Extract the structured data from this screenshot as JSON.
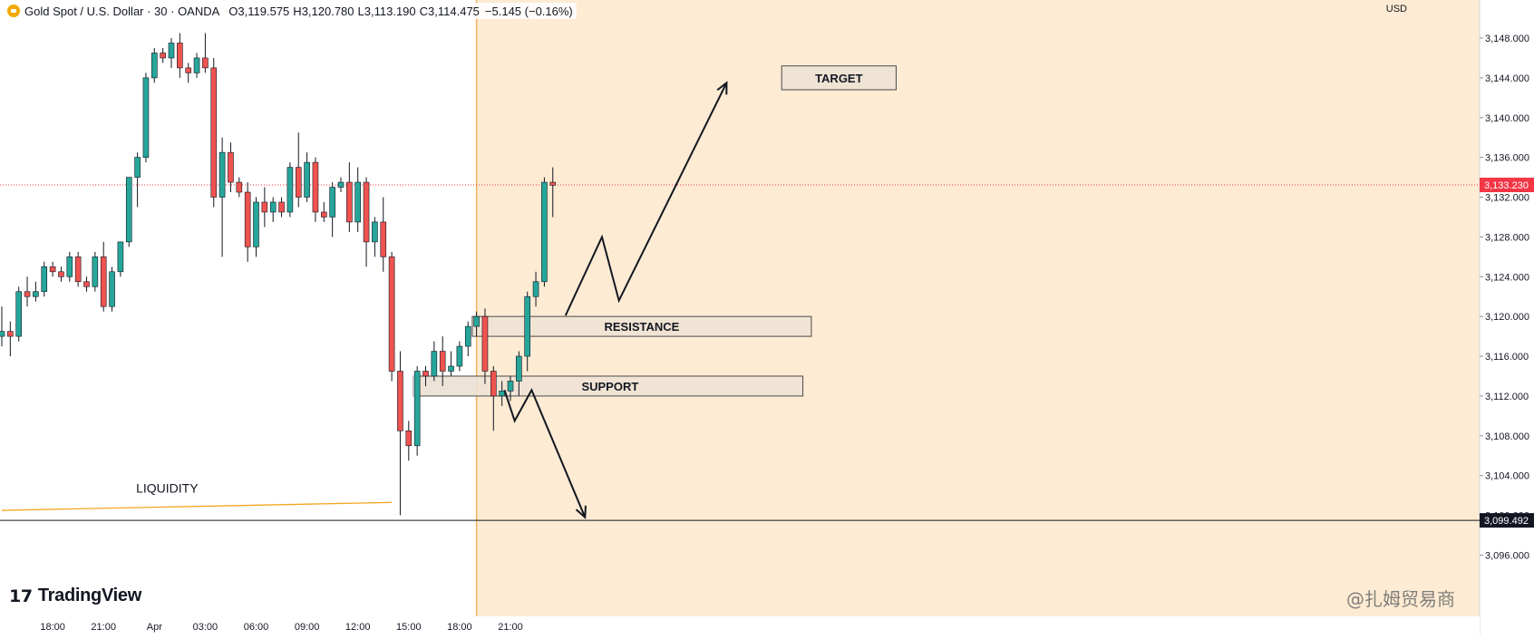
{
  "header": {
    "symbol": "Gold Spot / U.S. Dollar · 30 · OANDA",
    "open_label": "O",
    "open": "3,119.575",
    "high_label": "H",
    "high": "3,120.780",
    "low_label": "L",
    "low": "3,113.190",
    "close_label": "C",
    "close": "3,114.475",
    "change": "−5.145 (−0.16%)"
  },
  "currency": "USD",
  "brand": "TradingView",
  "watermark": "@扎姆贸易商",
  "colors": {
    "up": "#26a69a",
    "down": "#ef5350",
    "wick": "#131722",
    "zone_bg": "#fdebd3",
    "zone_line": "#f5b45a",
    "box_fill": "#efe3d3",
    "box_stroke": "#4a4a4a",
    "price_tag": "#f23645",
    "grey_box": "#e0e3eb",
    "liquidity": "#f5a623"
  },
  "chart_data": {
    "type": "candlestick",
    "title": "",
    "xlabel": "",
    "ylabel": "",
    "ylim": [
      3092,
      3152
    ],
    "y_ticks": [
      3148,
      3144,
      3140,
      3136,
      3132,
      3128,
      3124,
      3120,
      3116,
      3112,
      3108,
      3104,
      3100,
      3096
    ],
    "y_tick_labels": [
      "3,148.000",
      "3,144.000",
      "3,140.000",
      "3,136.000",
      "3,132.000",
      "3,128.000",
      "3,124.000",
      "3,120.000",
      "3,116.000",
      "3,112.000",
      "3,108.000",
      "3,104.000",
      "3,100.000",
      "3,096.000"
    ],
    "x_ticks": [
      {
        "label": "18:00",
        "bar": 6
      },
      {
        "label": "21:00",
        "bar": 12
      },
      {
        "label": "Apr",
        "bar": 18
      },
      {
        "label": "03:00",
        "bar": 24
      },
      {
        "label": "06:00",
        "bar": 30
      },
      {
        "label": "09:00",
        "bar": 36
      },
      {
        "label": "12:00",
        "bar": 42
      },
      {
        "label": "15:00",
        "bar": 48
      },
      {
        "label": "18:00",
        "bar": 54
      },
      {
        "label": "21:00",
        "bar": 60
      }
    ],
    "ohlc": [
      [
        3118.0,
        3121.0,
        3117.0,
        3118.5
      ],
      [
        3118.5,
        3119.5,
        3116.0,
        3118.0
      ],
      [
        3118.0,
        3123.0,
        3117.5,
        3122.5
      ],
      [
        3122.5,
        3124.0,
        3121.0,
        3122.0
      ],
      [
        3122.0,
        3123.5,
        3121.5,
        3122.5
      ],
      [
        3122.5,
        3125.5,
        3122.0,
        3125.0
      ],
      [
        3125.0,
        3125.5,
        3124.0,
        3124.5
      ],
      [
        3124.5,
        3125.0,
        3123.5,
        3124.0
      ],
      [
        3124.0,
        3126.5,
        3123.5,
        3126.0
      ],
      [
        3126.0,
        3126.5,
        3123.0,
        3123.5
      ],
      [
        3123.5,
        3124.0,
        3122.5,
        3123.0
      ],
      [
        3123.0,
        3126.5,
        3122.5,
        3126.0
      ],
      [
        3126.0,
        3127.5,
        3120.5,
        3121.0
      ],
      [
        3121.0,
        3125.0,
        3120.5,
        3124.5
      ],
      [
        3124.5,
        3127.5,
        3124.0,
        3127.5
      ],
      [
        3127.5,
        3134.0,
        3127.0,
        3134.0
      ],
      [
        3134.0,
        3136.5,
        3131.0,
        3136.0
      ],
      [
        3136.0,
        3144.5,
        3135.5,
        3144.0
      ],
      [
        3144.0,
        3147.0,
        3143.5,
        3146.5
      ],
      [
        3146.5,
        3147.0,
        3145.5,
        3146.0
      ],
      [
        3146.0,
        3148.0,
        3145.0,
        3147.5
      ],
      [
        3147.5,
        3148.5,
        3144.0,
        3145.0
      ],
      [
        3145.0,
        3145.5,
        3143.5,
        3144.5
      ],
      [
        3144.5,
        3146.5,
        3144.0,
        3146.0
      ],
      [
        3146.0,
        3148.5,
        3144.5,
        3145.0
      ],
      [
        3145.0,
        3146.0,
        3131.0,
        3132.0
      ],
      [
        3132.0,
        3138.0,
        3126.0,
        3136.5
      ],
      [
        3136.5,
        3137.5,
        3132.5,
        3133.5
      ],
      [
        3133.5,
        3134.0,
        3132.0,
        3132.5
      ],
      [
        3132.5,
        3133.5,
        3125.5,
        3127.0
      ],
      [
        3127.0,
        3132.0,
        3126.0,
        3131.5
      ],
      [
        3131.5,
        3133.0,
        3129.0,
        3130.5
      ],
      [
        3130.5,
        3132.0,
        3129.5,
        3131.5
      ],
      [
        3131.5,
        3132.0,
        3130.0,
        3130.5
      ],
      [
        3130.5,
        3135.5,
        3130.0,
        3135.0
      ],
      [
        3135.0,
        3138.5,
        3131.0,
        3132.0
      ],
      [
        3132.0,
        3136.5,
        3131.5,
        3135.5
      ],
      [
        3135.5,
        3136.0,
        3129.5,
        3130.5
      ],
      [
        3130.5,
        3131.5,
        3129.5,
        3130.0
      ],
      [
        3130.0,
        3133.5,
        3128.0,
        3133.0
      ],
      [
        3133.0,
        3134.0,
        3132.5,
        3133.5
      ],
      [
        3133.5,
        3135.5,
        3128.5,
        3129.5
      ],
      [
        3129.5,
        3135.0,
        3128.5,
        3133.5
      ],
      [
        3133.5,
        3134.0,
        3125.0,
        3127.5
      ],
      [
        3127.5,
        3130.0,
        3126.0,
        3129.5
      ],
      [
        3129.5,
        3132.0,
        3124.5,
        3126.0
      ],
      [
        3126.0,
        3126.5,
        3113.5,
        3114.5
      ],
      [
        3114.5,
        3116.5,
        3100.0,
        3108.5
      ],
      [
        3108.5,
        3109.5,
        3105.5,
        3107.0
      ],
      [
        3107.0,
        3115.0,
        3106.0,
        3114.5
      ],
      [
        3114.5,
        3115.0,
        3113.0,
        3114.0
      ],
      [
        3114.0,
        3117.5,
        3113.5,
        3116.5
      ],
      [
        3116.5,
        3118.0,
        3113.0,
        3114.5
      ],
      [
        3114.5,
        3116.5,
        3114.0,
        3115.0
      ],
      [
        3115.0,
        3117.5,
        3114.5,
        3117.0
      ],
      [
        3117.0,
        3119.5,
        3116.0,
        3119.0
      ],
      [
        3119.0,
        3120.5,
        3118.0,
        3120.0
      ],
      [
        3120.0,
        3120.8,
        3113.2,
        3114.5
      ],
      [
        3114.5,
        3115.0,
        3108.5,
        3112.0
      ],
      [
        3112.0,
        3113.5,
        3111.0,
        3112.5
      ],
      [
        3112.5,
        3114.0,
        3111.5,
        3113.5
      ],
      [
        3113.5,
        3116.5,
        3112.0,
        3116.0
      ],
      [
        3116.0,
        3122.5,
        3114.5,
        3122.0
      ],
      [
        3122.0,
        3124.5,
        3121.0,
        3123.5
      ],
      [
        3123.5,
        3134.0,
        3123.0,
        3133.5
      ],
      [
        3133.5,
        3135.0,
        3130.0,
        3133.2
      ]
    ],
    "current_price": {
      "value": 3133.23,
      "label": "3,133.230"
    },
    "horizontal_line": {
      "value": 3099.492,
      "label": "3,099.492"
    },
    "liquidity_line": {
      "start": {
        "bar": 0,
        "price": 3100.5
      },
      "end": {
        "bar": 46,
        "price": 3101.3
      }
    },
    "session_start_bar": 56,
    "zones": [
      {
        "label": "RESISTANCE",
        "bar_start": 55.5,
        "bar_end": 95.5,
        "top": 3120.0,
        "bottom": 3118.0
      },
      {
        "label": "SUPPORT",
        "bar_start": 49.0,
        "bar_end": 94.5,
        "top": 3114.0,
        "bottom": 3112.0
      }
    ],
    "grey_box": {
      "bar_start": 48.5,
      "bar_end": 56.0,
      "top": 3114.0,
      "bottom": 3112.0
    },
    "target": {
      "label": "TARGET",
      "bar_start": 92.0,
      "bar_end": 105.5,
      "top": 3145.2,
      "bottom": 3142.8
    },
    "annotations": [
      {
        "label": "LIQUIDITY",
        "bar": 19.5,
        "price": 3102.3
      }
    ],
    "path_up": [
      [
        66.5,
        3120.1
      ],
      [
        70.8,
        3128.0
      ],
      [
        72.8,
        3121.6
      ],
      [
        85.5,
        3143.5
      ]
    ],
    "path_down": [
      [
        59.3,
        3112.6
      ],
      [
        60.5,
        3109.5
      ],
      [
        62.5,
        3112.6
      ],
      [
        68.8,
        3099.8
      ]
    ]
  }
}
